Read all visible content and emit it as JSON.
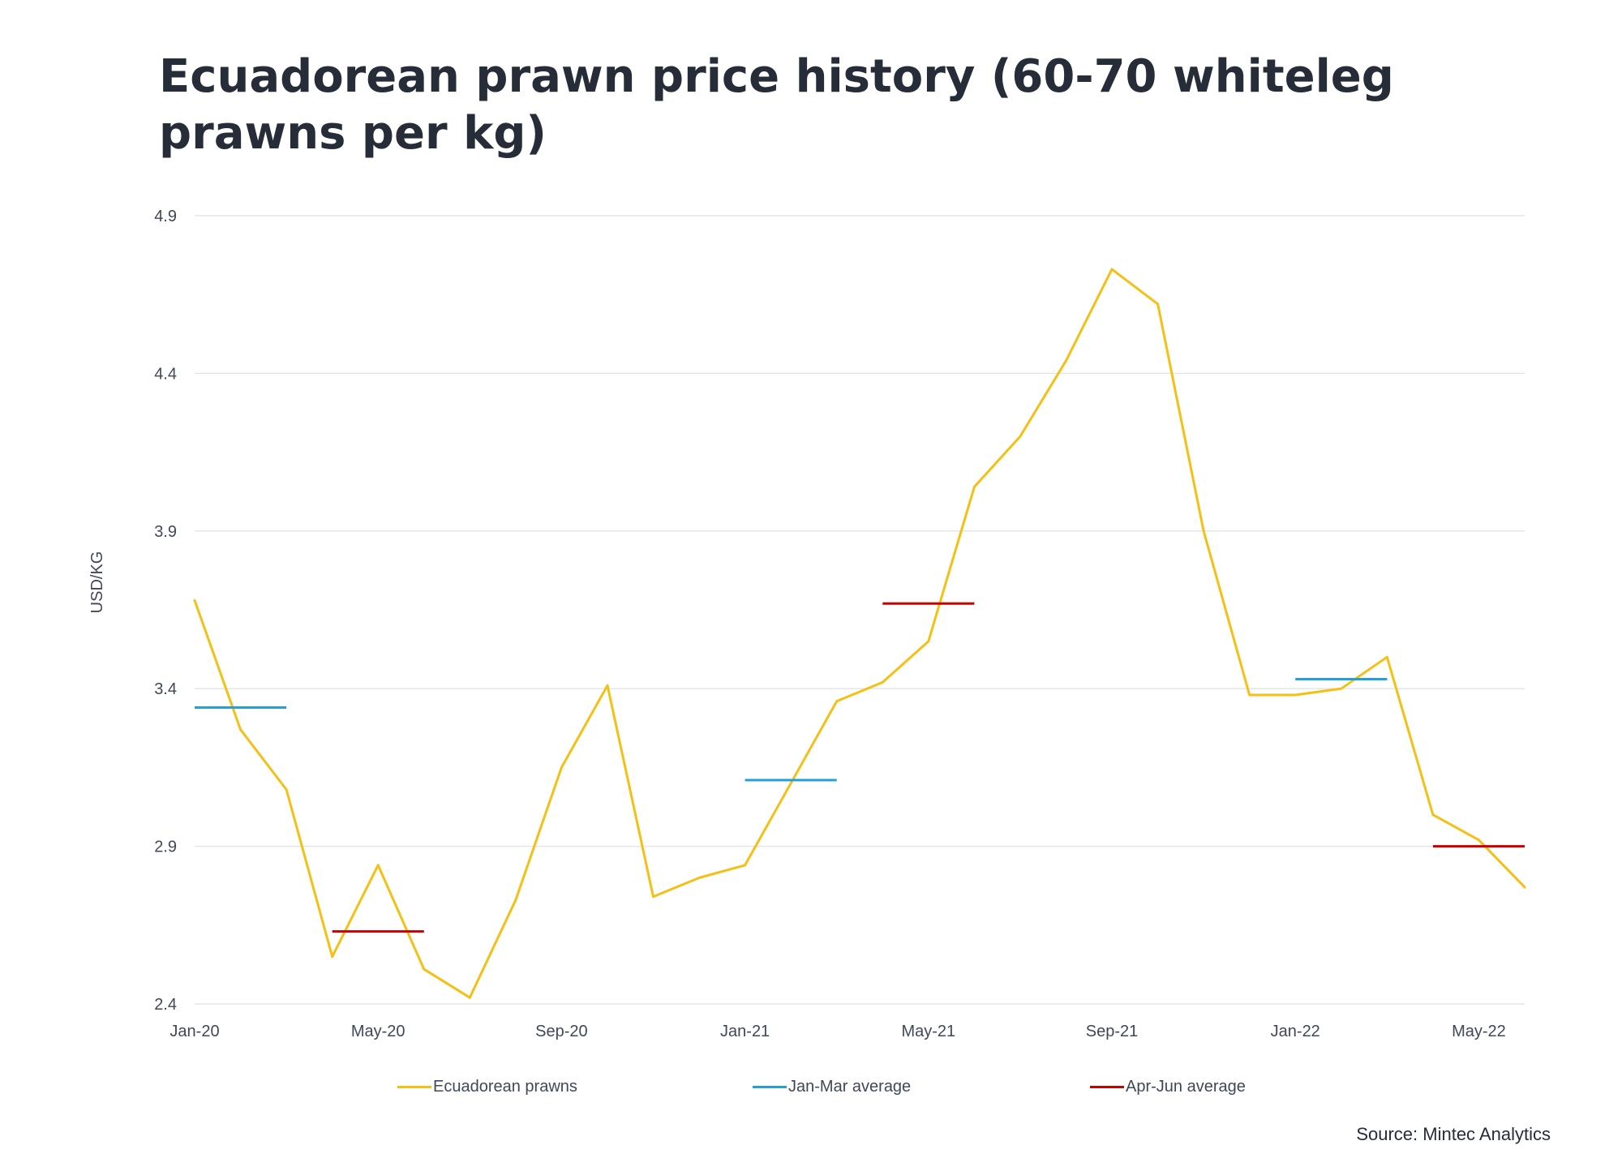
{
  "chart_data": {
    "type": "line",
    "title": "Ecuadorean prawn price history (60-70 whiteleg prawns per kg)",
    "ylabel": "USD/KG",
    "xlabel": "",
    "ylim": [
      2.4,
      4.9
    ],
    "yticks": [
      "2.4",
      "2.9",
      "3.4",
      "3.9",
      "4.4",
      "4.9"
    ],
    "ytick_values": [
      2.4,
      2.9,
      3.4,
      3.9,
      4.4,
      4.9
    ],
    "xticks": [
      "Jan-20",
      "May-20",
      "Sep-20",
      "Jan-21",
      "May-21",
      "Sep-21",
      "Jan-22",
      "May-22"
    ],
    "xtick_index": [
      0,
      4,
      8,
      12,
      16,
      20,
      24,
      28
    ],
    "x": [
      "Jan-20",
      "Feb-20",
      "Mar-20",
      "Apr-20",
      "May-20",
      "Jun-20",
      "Jul-20",
      "Aug-20",
      "Sep-20",
      "Oct-20",
      "Nov-20",
      "Dec-20",
      "Jan-21",
      "Feb-21",
      "Mar-21",
      "Apr-21",
      "May-21",
      "Jun-21",
      "Jul-21",
      "Aug-21",
      "Sep-21",
      "Oct-21",
      "Nov-21",
      "Dec-21",
      "Jan-22",
      "Feb-22",
      "Mar-22",
      "Apr-22",
      "May-22",
      "Jun-22"
    ],
    "grid": true,
    "legend_position": "bottom",
    "series": [
      {
        "name": "Ecuadorean prawns",
        "color": "#f5c016",
        "values": [
          3.68,
          3.27,
          3.08,
          2.55,
          2.84,
          2.51,
          2.42,
          2.73,
          3.15,
          3.41,
          2.74,
          2.8,
          2.84,
          3.1,
          3.36,
          3.42,
          3.55,
          4.04,
          4.2,
          4.44,
          4.73,
          4.62,
          3.9,
          3.38,
          3.38,
          3.4,
          3.5,
          3.0,
          2.92,
          2.77
        ]
      },
      {
        "name": "Jan-Mar average",
        "color": "#23a1d6",
        "segments": [
          {
            "from": 0,
            "to": 2,
            "value": 3.34
          },
          {
            "from": 12,
            "to": 14,
            "value": 3.11
          },
          {
            "from": 24,
            "to": 26,
            "value": 3.43
          }
        ]
      },
      {
        "name": "Apr-Jun average",
        "color": "#c80000",
        "segments": [
          {
            "from": 3,
            "to": 5,
            "value": 2.63
          },
          {
            "from": 15,
            "to": 17,
            "value": 3.67
          },
          {
            "from": 27,
            "to": 29,
            "value": 2.9
          }
        ]
      }
    ]
  },
  "source": "Source: Mintec Analytics"
}
